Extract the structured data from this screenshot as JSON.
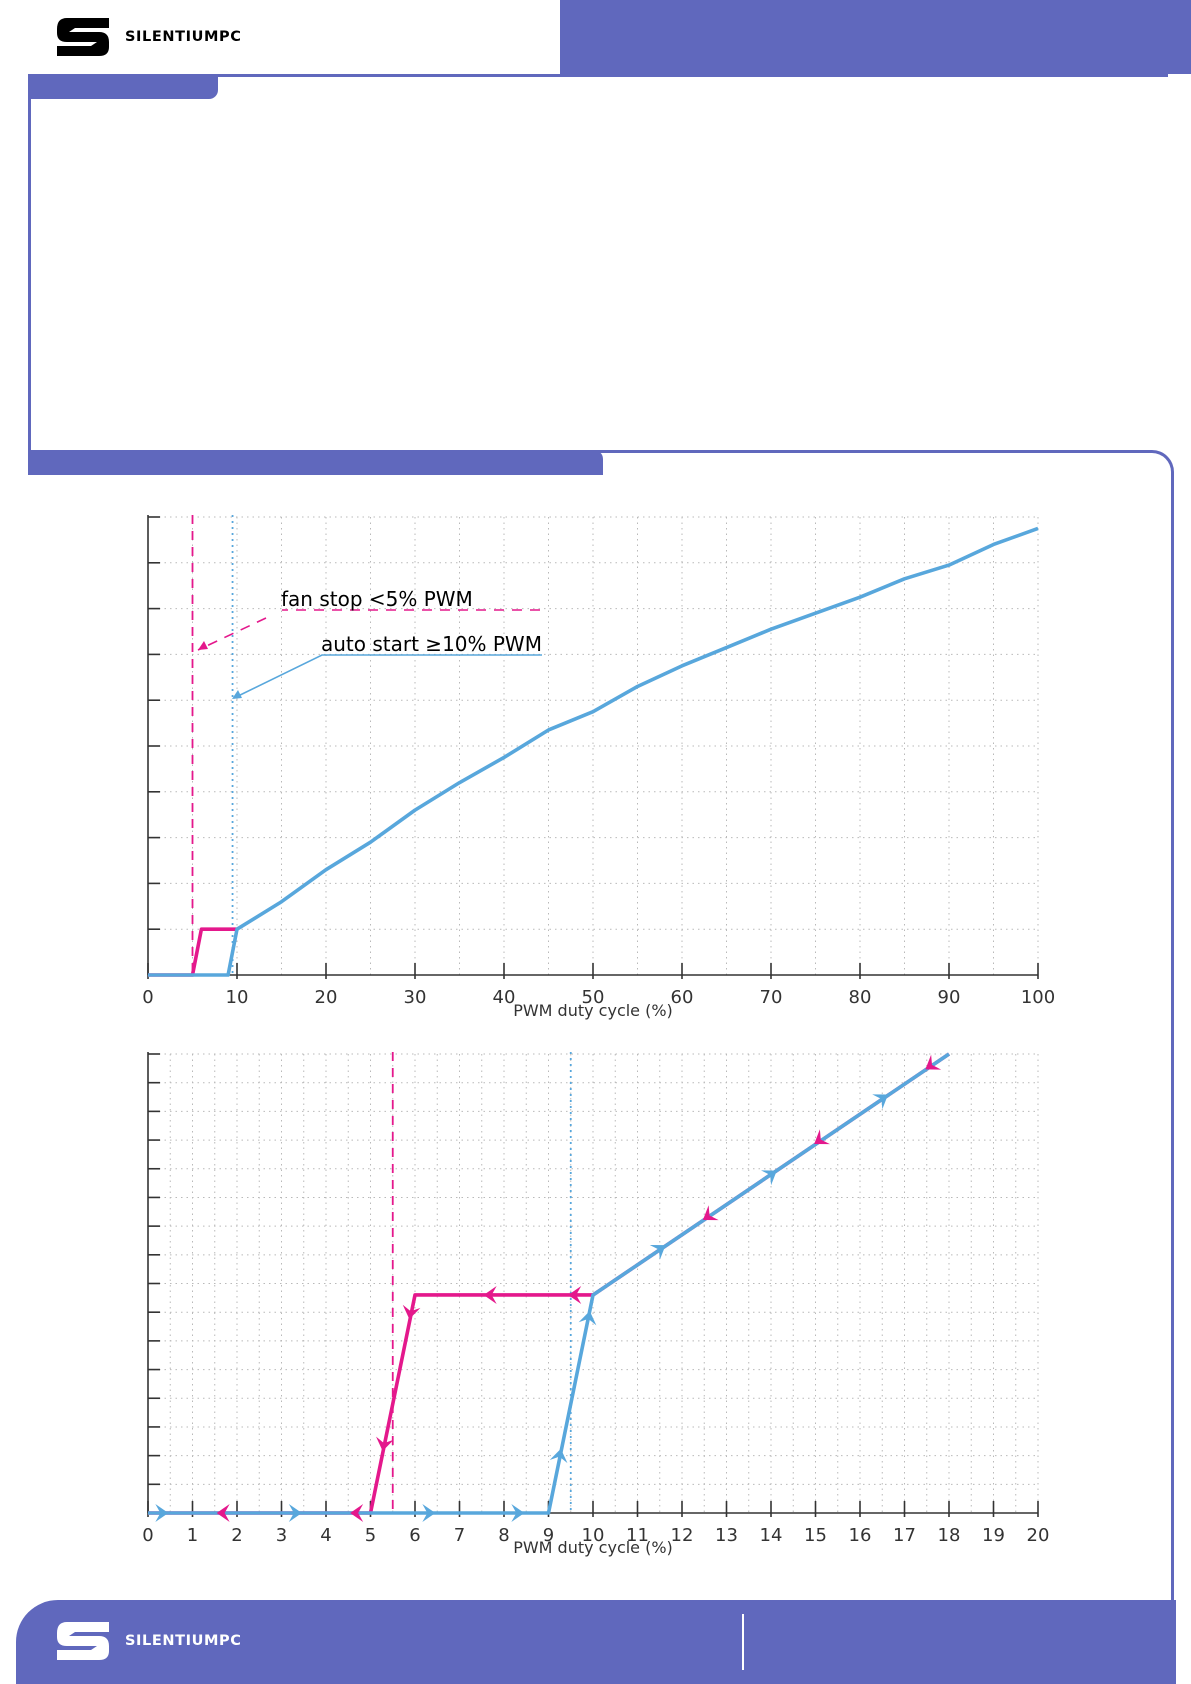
{
  "brand": {
    "name": "SILENTIUMPC"
  },
  "colors": {
    "band": "#6068bd",
    "blue": "#58a7dc",
    "pink": "#e4188c",
    "axis": "#333333",
    "grid": "#b9b9b9",
    "brandText": "#000000"
  },
  "annotations": {
    "fan_stop": "fan stop <5% PWM",
    "auto_start": "auto start ≥10% PWM"
  },
  "chart_data": [
    {
      "type": "line",
      "title": "",
      "xlabel": "PWM duty cycle (%)",
      "ylabel": "",
      "xlim": [
        0,
        100
      ],
      "ylim": [
        0,
        10
      ],
      "xticks": [
        "0",
        "10",
        "20",
        "30",
        "40",
        "50",
        "60",
        "70",
        "80",
        "90",
        "100"
      ],
      "y_tick_count": 11,
      "grid": true,
      "reference_lines": [
        {
          "x": 5,
          "style": "dashed",
          "color": "pink"
        },
        {
          "x": 9.5,
          "style": "dotted",
          "color": "blue"
        }
      ],
      "series": [
        {
          "color": "pink",
          "x": [
            0,
            5,
            6,
            10
          ],
          "y": [
            0,
            0,
            1,
            1
          ]
        },
        {
          "color": "blue",
          "x": [
            0,
            9,
            10,
            15,
            20,
            25,
            30,
            35,
            40,
            45,
            50,
            55,
            60,
            65,
            70,
            75,
            80,
            85,
            90,
            95,
            100
          ],
          "y": [
            0,
            0,
            1,
            1.6,
            2.3,
            2.9,
            3.6,
            4.2,
            4.75,
            5.35,
            5.75,
            6.3,
            6.75,
            7.15,
            7.55,
            7.9,
            8.25,
            8.65,
            8.95,
            9.4,
            9.75
          ]
        }
      ]
    },
    {
      "type": "line",
      "title": "",
      "xlabel": "PWM duty cycle (%)",
      "ylabel": "",
      "xlim": [
        0,
        20
      ],
      "ylim": [
        0,
        16
      ],
      "xticks": [
        "0",
        "1",
        "2",
        "3",
        "4",
        "5",
        "6",
        "7",
        "8",
        "9",
        "10",
        "11",
        "12",
        "13",
        "14",
        "15",
        "16",
        "17",
        "18",
        "19",
        "20"
      ],
      "y_tick_count": 17,
      "grid": true,
      "reference_lines": [
        {
          "x": 5.5,
          "style": "dashed",
          "color": "pink"
        },
        {
          "x": 9.5,
          "style": "dotted",
          "color": "blue"
        }
      ],
      "series": [
        {
          "color": "pink",
          "x": [
            0,
            5,
            6,
            10,
            18
          ],
          "y": [
            0,
            0,
            7.6,
            7.6,
            16
          ]
        },
        {
          "color": "blue",
          "x": [
            0,
            9,
            10,
            18
          ],
          "y": [
            0,
            0,
            7.6,
            16
          ]
        }
      ],
      "arrows": [
        {
          "color": "blue",
          "x": 0.3,
          "y": 0,
          "dir": "right"
        },
        {
          "color": "pink",
          "x": 1.7,
          "y": 0,
          "dir": "left"
        },
        {
          "color": "blue",
          "x": 3.3,
          "y": 0,
          "dir": "right"
        },
        {
          "color": "pink",
          "x": 4.7,
          "y": 0,
          "dir": "left"
        },
        {
          "color": "blue",
          "x": 6.3,
          "y": 0,
          "dir": "right"
        },
        {
          "color": "blue",
          "x": 8.3,
          "y": 0,
          "dir": "right"
        },
        {
          "color": "blue",
          "x": 9.25,
          "y": 2,
          "dir": "up"
        },
        {
          "color": "blue",
          "x": 9.9,
          "y": 6.8,
          "dir": "up"
        },
        {
          "color": "pink",
          "x": 5.3,
          "y": 2.4,
          "dir": "down"
        },
        {
          "color": "pink",
          "x": 5.9,
          "y": 7.0,
          "dir": "down"
        },
        {
          "color": "pink",
          "x": 7.7,
          "y": 7.6,
          "dir": "left"
        },
        {
          "color": "pink",
          "x": 9.6,
          "y": 7.6,
          "dir": "left"
        },
        {
          "color": "blue",
          "x": 11.5,
          "y": 9.2,
          "dir": "upright"
        },
        {
          "color": "pink",
          "x": 12.6,
          "y": 10.35,
          "dir": "downleft"
        },
        {
          "color": "blue",
          "x": 14.0,
          "y": 11.8,
          "dir": "upright"
        },
        {
          "color": "pink",
          "x": 15.1,
          "y": 13.0,
          "dir": "downleft"
        },
        {
          "color": "blue",
          "x": 16.5,
          "y": 14.45,
          "dir": "upright"
        },
        {
          "color": "pink",
          "x": 17.6,
          "y": 15.6,
          "dir": "downleft"
        }
      ]
    }
  ]
}
